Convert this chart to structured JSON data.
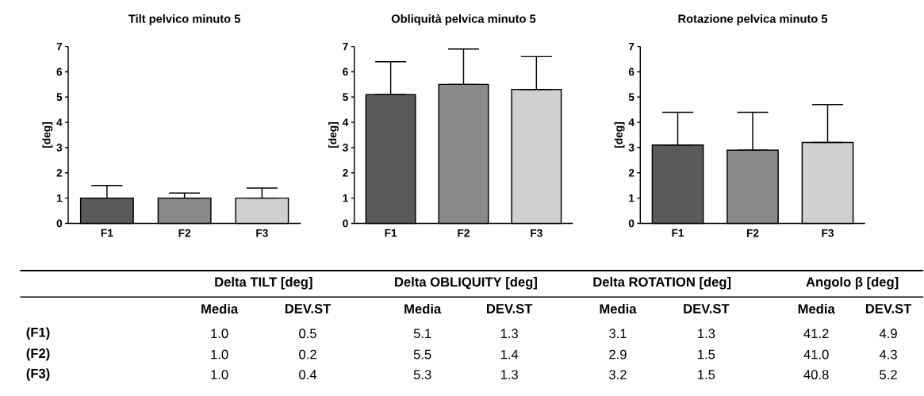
{
  "chart_data": [
    {
      "type": "bar",
      "title": "Tilt pelvico minuto 5",
      "ylabel": "[deg]",
      "categories": [
        "F1",
        "F2",
        "F3"
      ],
      "values": [
        1.0,
        1.0,
        1.0
      ],
      "errors": [
        [
          1.0,
          1.5
        ],
        [
          1.0,
          1.2
        ],
        [
          1.0,
          1.4
        ]
      ],
      "colors": [
        "#5a5a5a",
        "#8a8a8a",
        "#d0d0d0"
      ],
      "ylim": [
        0,
        7
      ],
      "yticks": [
        0,
        1,
        2,
        3,
        4,
        5,
        6,
        7
      ]
    },
    {
      "type": "bar",
      "title": "Obliquità pelvica minuto 5",
      "ylabel": "[deg]",
      "categories": [
        "F1",
        "F2",
        "F3"
      ],
      "values": [
        5.1,
        5.5,
        5.3
      ],
      "errors": [
        [
          5.1,
          6.4
        ],
        [
          5.5,
          6.9
        ],
        [
          5.3,
          6.6
        ]
      ],
      "colors": [
        "#5a5a5a",
        "#8a8a8a",
        "#d0d0d0"
      ],
      "ylim": [
        0,
        7
      ],
      "yticks": [
        0,
        1,
        2,
        3,
        4,
        5,
        6,
        7
      ]
    },
    {
      "type": "bar",
      "title": "Rotazione pelvica minuto 5",
      "ylabel": "[deg]",
      "categories": [
        "F1",
        "F2",
        "F3"
      ],
      "values": [
        3.1,
        2.9,
        3.2
      ],
      "errors": [
        [
          3.1,
          4.4
        ],
        [
          2.9,
          4.4
        ],
        [
          3.2,
          4.7
        ]
      ],
      "colors": [
        "#5a5a5a",
        "#8a8a8a",
        "#d0d0d0"
      ],
      "ylim": [
        0,
        7
      ],
      "yticks": [
        0,
        1,
        2,
        3,
        4,
        5,
        6,
        7
      ]
    },
    {
      "type": "other",
      "categories": [
        "(F1)",
        "(F2)",
        "(F3)"
      ],
      "annotations": [
        "Delta TILT [deg]",
        "Delta OBLIQUITY [deg]",
        "Delta ROTATION [deg]",
        "Angolo β [deg]"
      ],
      "series": [
        {
          "name": "Media",
          "values": [
            1.0,
            1.0,
            1.0
          ],
          "value_labels": [
            "1.0",
            "1.0",
            "1.0"
          ]
        },
        {
          "name": "DEV.ST",
          "values": [
            0.5,
            0.2,
            0.4
          ],
          "value_labels": [
            "0.5",
            "0.2",
            "0.4"
          ]
        },
        {
          "name": "Media",
          "values": [
            5.1,
            5.5,
            5.3
          ],
          "value_labels": [
            "5.1",
            "5.5",
            "5.3"
          ]
        },
        {
          "name": "DEV.ST",
          "values": [
            1.3,
            1.4,
            1.3
          ],
          "value_labels": [
            "1.3",
            "1.4",
            "1.3"
          ]
        },
        {
          "name": "Media",
          "values": [
            3.1,
            2.9,
            3.2
          ],
          "value_labels": [
            "3.1",
            "2.9",
            "3.2"
          ]
        },
        {
          "name": "DEV.ST",
          "values": [
            1.3,
            1.5,
            1.5
          ],
          "value_labels": [
            "1.3",
            "1.5",
            "1.5"
          ]
        },
        {
          "name": "Media",
          "values": [
            41.2,
            41.0,
            40.8
          ],
          "value_labels": [
            "41.2",
            "41.0",
            "40.8"
          ]
        },
        {
          "name": "DEV.ST",
          "values": [
            4.9,
            4.3,
            5.2
          ],
          "value_labels": [
            "4.9",
            "4.3",
            "5.2"
          ]
        }
      ]
    }
  ]
}
